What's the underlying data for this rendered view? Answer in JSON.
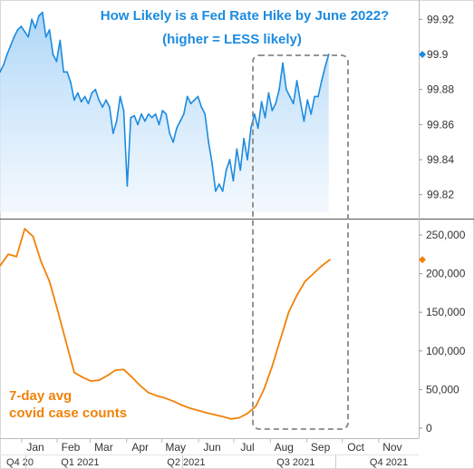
{
  "chart_data": [
    {
      "type": "area",
      "title": "How Likely is a Fed Rate Hike by June 2022?",
      "subtitle": "(higher = LESS likely)",
      "ylim": [
        99.81,
        99.93
      ],
      "yticks": [
        99.82,
        99.84,
        99.86,
        99.88,
        99.9,
        99.92
      ],
      "ytick_labels": [
        "99.82",
        "99.84",
        "99.86",
        "99.88",
        "99.9",
        "99.92"
      ],
      "last_value_label": "99.9",
      "color": "#1c8be0",
      "x": [
        0,
        3,
        6,
        9,
        12,
        15,
        18,
        21,
        24,
        27,
        30,
        33,
        36,
        39,
        42,
        45,
        48,
        51,
        54,
        57,
        60,
        63,
        66,
        69,
        72,
        75,
        78,
        81,
        84,
        87,
        90,
        93,
        96,
        99,
        102,
        105,
        108,
        111,
        114,
        117,
        120,
        123,
        126,
        129,
        132,
        135,
        138,
        141,
        144,
        147,
        150,
        153,
        156,
        159,
        162,
        165,
        168,
        171,
        174,
        177,
        180,
        183,
        186,
        189,
        192,
        195,
        198,
        201,
        204,
        207,
        210,
        213,
        216,
        219,
        222,
        225,
        228,
        231,
        234,
        237,
        240,
        243,
        246,
        249,
        252,
        255,
        258,
        261,
        264,
        267,
        270,
        273,
        276,
        279
      ],
      "values": [
        99.89,
        99.894,
        99.9,
        99.905,
        99.91,
        99.914,
        99.916,
        99.913,
        99.91,
        99.92,
        99.915,
        99.922,
        99.924,
        99.91,
        99.914,
        99.9,
        99.896,
        99.908,
        99.89,
        99.89,
        99.884,
        99.874,
        99.878,
        99.873,
        99.876,
        99.872,
        99.878,
        99.88,
        99.874,
        99.87,
        99.874,
        99.87,
        99.855,
        99.862,
        99.876,
        99.868,
        99.825,
        99.864,
        99.865,
        99.86,
        99.866,
        99.862,
        99.866,
        99.864,
        99.866,
        99.86,
        99.868,
        99.866,
        99.855,
        99.85,
        99.858,
        99.862,
        99.866,
        99.876,
        99.872,
        99.874,
        99.876,
        99.87,
        99.866,
        99.85,
        99.838,
        99.822,
        99.826,
        99.822,
        99.834,
        99.84,
        99.828,
        99.846,
        99.834,
        99.852,
        99.84,
        99.858,
        99.866,
        99.858,
        99.873,
        99.864,
        99.878,
        99.868,
        99.872,
        99.88,
        99.895,
        99.88,
        99.876,
        99.872,
        99.885,
        99.873,
        99.862,
        99.874,
        99.866,
        99.876,
        99.876,
        99.885,
        99.893,
        99.9
      ]
    },
    {
      "type": "line",
      "ylim": [
        0,
        270000
      ],
      "yticks": [
        0,
        50000,
        100000,
        150000,
        200000,
        250000
      ],
      "ytick_labels": [
        "0",
        "50,000",
        "100,000",
        "150,000",
        "200,000",
        "250,000"
      ],
      "color": "#f0820a",
      "annotation": [
        "7-day avg",
        "covid case counts"
      ],
      "x": [
        0,
        7,
        14,
        21,
        28,
        35,
        42,
        49,
        56,
        63,
        70,
        77,
        84,
        91,
        98,
        105,
        112,
        119,
        126,
        133,
        140,
        147,
        154,
        161,
        168,
        175,
        182,
        189,
        196,
        203,
        210,
        217,
        224,
        231,
        238,
        245,
        252,
        259,
        266,
        273,
        280
      ],
      "values": [
        210000,
        225000,
        222000,
        258000,
        248000,
        215000,
        190000,
        152000,
        112000,
        72000,
        66000,
        61000,
        62000,
        68000,
        75000,
        76000,
        66000,
        55000,
        46000,
        42000,
        39000,
        35000,
        30000,
        26000,
        23000,
        20000,
        17500,
        15000,
        12000,
        13500,
        19000,
        28000,
        50000,
        80000,
        115000,
        150000,
        172000,
        190000,
        200000,
        210000,
        218000
      ]
    }
  ],
  "x_axis": {
    "months": [
      "Jan",
      "Feb",
      "Mar",
      "Apr",
      "May",
      "Jun",
      "Jul",
      "Aug",
      "Sep",
      "Oct",
      "Nov"
    ],
    "quarters": [
      "Q4 20",
      "Q1 2021",
      "Q2 2021",
      "Q3 2021",
      "Q4 2021"
    ]
  }
}
